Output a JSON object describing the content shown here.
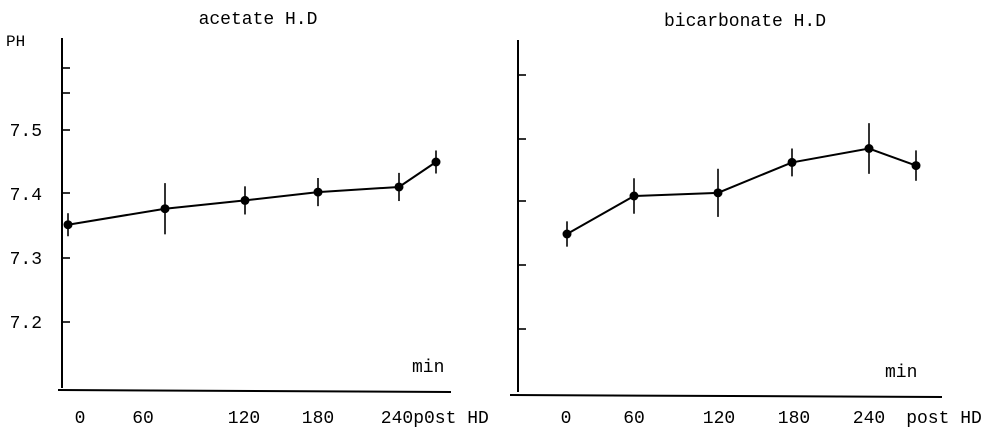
{
  "chart_data": [
    {
      "type": "line",
      "title": "acetate H.D",
      "ylabel": "PH",
      "xunit": "min",
      "categories": [
        "0",
        "60",
        "120",
        "180",
        "240",
        "p0st HD"
      ],
      "series": [
        {
          "values": [
            7.352,
            7.377,
            7.39,
            7.403,
            7.411,
            7.45
          ],
          "errors": [
            0.018,
            0.04,
            0.022,
            0.022,
            0.022,
            0.018
          ]
        }
      ],
      "ylim": [
        7.1,
        7.65
      ],
      "yticks": [
        7.5,
        7.4,
        7.3,
        7.2
      ],
      "ytick_labels": [
        "7.5",
        "7.4",
        "7.3",
        "7.2"
      ],
      "grid": false
    },
    {
      "type": "line",
      "title": "bicarbonate H.D",
      "ylabel": "",
      "xunit": "min",
      "categories": [
        "0",
        "60",
        "120",
        "180",
        "240",
        "post HD"
      ],
      "series": [
        {
          "values": [
            7.35,
            7.41,
            7.415,
            7.463,
            7.485,
            7.458
          ],
          "errors": [
            0.02,
            0.028,
            0.038,
            0.022,
            0.04,
            0.024
          ]
        }
      ],
      "ylim": [
        7.1,
        7.65
      ],
      "yticks": [
        7.5,
        7.4,
        7.3,
        7.2
      ],
      "ytick_labels": [
        "",
        "",
        "",
        ""
      ],
      "grid": false
    }
  ]
}
